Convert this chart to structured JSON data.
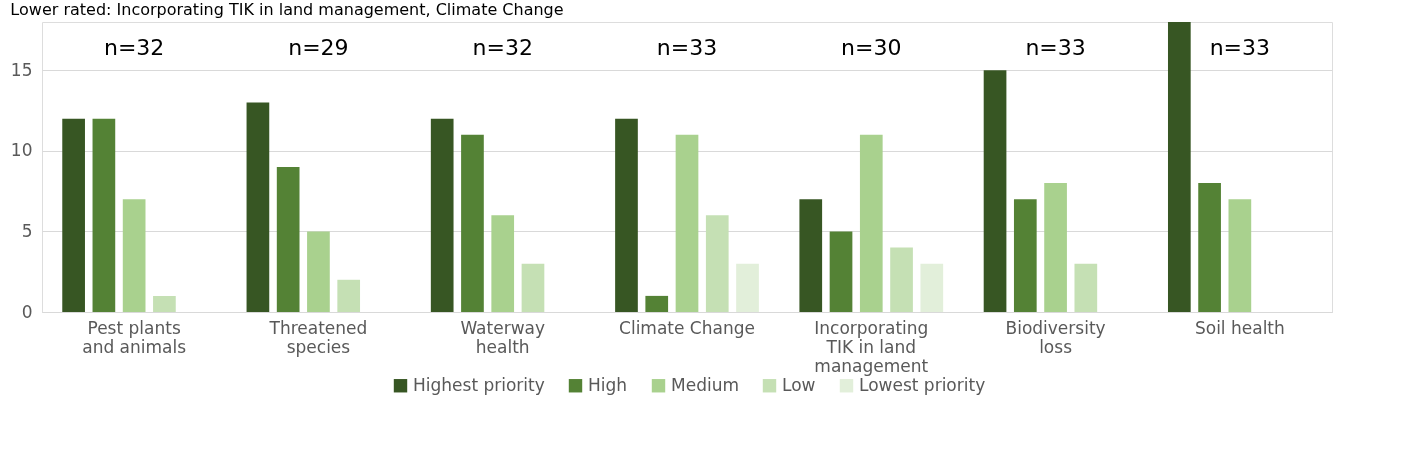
{
  "chart_data": {
    "type": "bar",
    "title": "Lower rated: Incorporating TIK in land management, Climate Change",
    "categories": [
      "Pest plants and animals",
      "Threatened species",
      "Waterway health",
      "Climate Change",
      "Incorporating TIK in land management",
      "Biodiversity loss",
      "Soil health"
    ],
    "series": [
      {
        "name": "Highest priority",
        "color": "#375623",
        "values": [
          12,
          13,
          12,
          12,
          7,
          15,
          18
        ]
      },
      {
        "name": "High",
        "color": "#548235",
        "values": [
          12,
          9,
          11,
          1,
          5,
          7,
          8
        ]
      },
      {
        "name": "Medium",
        "color": "#a9d18e",
        "values": [
          7,
          5,
          6,
          11,
          11,
          8,
          7
        ]
      },
      {
        "name": "Low",
        "color": "#c5e0b4",
        "values": [
          1,
          2,
          3,
          6,
          4,
          3,
          0
        ]
      },
      {
        "name": "Lowest priority",
        "color": "#e2efda",
        "values": [
          0,
          0,
          0,
          3,
          3,
          0,
          0
        ]
      }
    ],
    "ylim": [
      0,
      18
    ],
    "yticks": [
      0,
      5,
      10,
      15
    ],
    "grid": "y",
    "legend": "bottom",
    "annotations": [
      "n=32",
      "n=29",
      "n=32",
      "n=33",
      "n=30",
      "n=33",
      "n=33"
    ]
  }
}
